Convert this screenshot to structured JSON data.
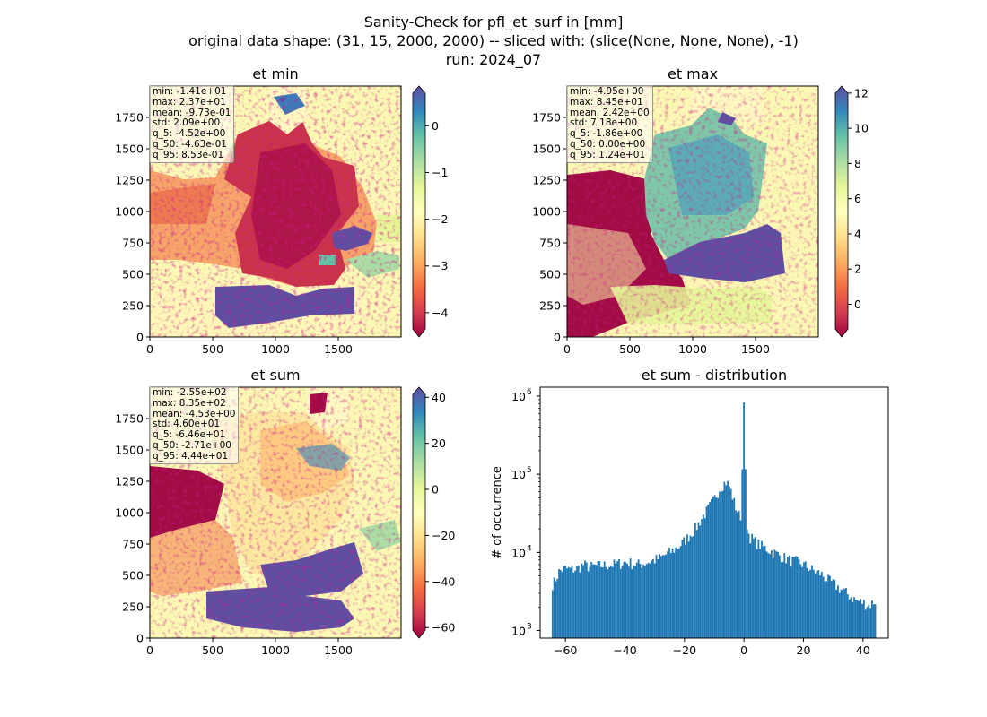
{
  "suptitle": [
    "Sanity-Check for pfl_et_surf in [mm]",
    "original data shape: (31, 15, 2000, 2000) -- sliced with: (slice(None, None, None), -1)",
    "run: 2024_07"
  ],
  "panels": {
    "et_min": {
      "title": "et min",
      "xticks": [
        "0",
        "500",
        "1000",
        "1500"
      ],
      "yticks": [
        "0",
        "250",
        "500",
        "750",
        "1000",
        "1250",
        "1500",
        "1750"
      ],
      "cbar_ticks": [
        "0",
        "−1",
        "−2",
        "−3",
        "−4"
      ],
      "stats": [
        "min: -1.41e+01",
        "max: 2.37e+01",
        "mean: -9.73e-01",
        "std: 2.09e+00",
        "q_5: -4.52e+00",
        "q_50: -4.63e-01",
        "q_95: 8.53e-01"
      ]
    },
    "et_max": {
      "title": "et max",
      "xticks": [
        "0",
        "500",
        "1000",
        "1500"
      ],
      "yticks": [
        "0",
        "250",
        "500",
        "750",
        "1000",
        "1250",
        "1500",
        "1750"
      ],
      "cbar_ticks": [
        "12",
        "10",
        "8",
        "6",
        "4",
        "2",
        "0"
      ],
      "stats": [
        "min: -4.95e+00",
        "max: 8.45e+01",
        "mean: 2.42e+00",
        "std: 7.18e+00",
        "q_5: -1.86e+00",
        "q_50: 0.00e+00",
        "q_95: 1.24e+01"
      ]
    },
    "et_sum": {
      "title": "et sum",
      "xticks": [
        "0",
        "500",
        "1000",
        "1500"
      ],
      "yticks": [
        "0",
        "250",
        "500",
        "750",
        "1000",
        "1250",
        "1500",
        "1750"
      ],
      "cbar_ticks": [
        "40",
        "20",
        "0",
        "−20",
        "−40",
        "−60"
      ],
      "stats": [
        "min: -2.55e+02",
        "max: 8.35e+02",
        "mean: -4.53e+00",
        "std: 4.60e+01",
        "q_5: -6.46e+01",
        "q_50: -2.71e+00",
        "q_95: 4.44e+01"
      ]
    },
    "dist": {
      "title": "et sum - distribution",
      "ylabel": "# of occurrence",
      "xticks": [
        "−60",
        "−40",
        "−20",
        "0",
        "20",
        "40"
      ],
      "yticks": [
        "10",
        "10",
        "10",
        "10"
      ],
      "ytick_exps": [
        "3",
        "4",
        "5",
        "6"
      ]
    }
  },
  "colors": {
    "hist_bar": "#1f77b4",
    "cmap": "Spectral"
  },
  "chart_data": [
    {
      "type": "heatmap",
      "title": "et min",
      "colormap": "Spectral",
      "xlim": [
        0,
        2000
      ],
      "ylim": [
        0,
        2000
      ],
      "clim": [
        -4.52,
        0.85
      ],
      "colorbar_extend": "both",
      "stats_box": "top-left"
    },
    {
      "type": "heatmap",
      "title": "et max",
      "colormap": "Spectral",
      "xlim": [
        0,
        2000
      ],
      "ylim": [
        0,
        2000
      ],
      "clim": [
        -1.86,
        12.4
      ],
      "colorbar_extend": "both",
      "stats_box": "top-left"
    },
    {
      "type": "heatmap",
      "title": "et sum",
      "colormap": "Spectral",
      "xlim": [
        0,
        2000
      ],
      "ylim": [
        0,
        2000
      ],
      "clim": [
        -64.6,
        44.4
      ],
      "colorbar_extend": "both",
      "stats_box": "top-left"
    },
    {
      "type": "bar",
      "title": "et sum - distribution",
      "ylabel": "# of occurrence",
      "xlabel": "",
      "yscale": "log",
      "ylim": [
        800,
        1300000
      ],
      "xlim": [
        -68.5,
        48.5
      ],
      "bin_range": [
        -64.6,
        44.4
      ],
      "bin_count": 200,
      "x": [
        -64,
        -62,
        -60,
        -58,
        -56,
        -54,
        -52,
        -50,
        -48,
        -46,
        -44,
        -42,
        -40,
        -38,
        -36,
        -34,
        -32,
        -30,
        -28,
        -26,
        -24,
        -22,
        -20,
        -18,
        -16,
        -14,
        -12,
        -10,
        -8,
        -7,
        -6,
        -5,
        -4,
        -3,
        -2,
        -1,
        0,
        1,
        2,
        4,
        6,
        8,
        10,
        12,
        14,
        16,
        18,
        20,
        22,
        24,
        26,
        28,
        30,
        32,
        34,
        36,
        38,
        40,
        42,
        44
      ],
      "values": [
        4000,
        5800,
        6200,
        6000,
        6200,
        7000,
        6500,
        6700,
        6800,
        6900,
        7000,
        7200,
        7500,
        7300,
        7000,
        7200,
        7600,
        8000,
        8500,
        9500,
        10500,
        11800,
        14000,
        17000,
        21000,
        28000,
        36000,
        48000,
        68000,
        75000,
        80000,
        72000,
        55000,
        40000,
        33000,
        25000,
        830000,
        20000,
        16000,
        13500,
        12000,
        11000,
        10000,
        9200,
        8400,
        7800,
        7600,
        7000,
        6300,
        5700,
        5300,
        4500,
        4000,
        3500,
        3100,
        2700,
        2400,
        2300,
        2100,
        2400
      ]
    }
  ]
}
